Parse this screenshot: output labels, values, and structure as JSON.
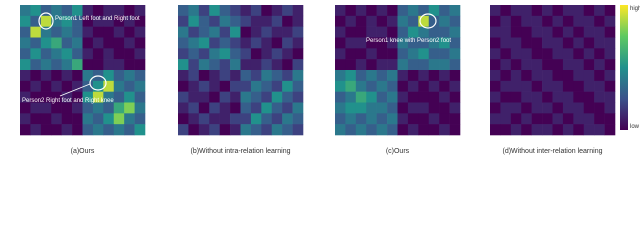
{
  "chart_data": [
    {
      "type": "heatmap",
      "title": "(a)Ours",
      "annotations": [
        "Person1 Left foot and Right foot",
        "Person2 Right foot and Right knee"
      ],
      "values": [
        [
          0.4,
          0.5,
          0.3,
          0.4,
          0.3,
          0.5,
          0.1,
          0.0,
          0.1,
          0.1,
          0.0,
          0.1
        ],
        [
          0.5,
          0.3,
          0.9,
          0.4,
          0.5,
          0.3,
          0.0,
          0.1,
          0.1,
          0.0,
          0.1,
          0.0
        ],
        [
          0.3,
          0.9,
          0.4,
          0.3,
          0.4,
          0.3,
          0.1,
          0.0,
          0.0,
          0.1,
          0.0,
          0.1
        ],
        [
          0.4,
          0.3,
          0.5,
          0.6,
          0.3,
          0.4,
          0.0,
          0.1,
          0.0,
          0.0,
          0.1,
          0.0
        ],
        [
          0.3,
          0.5,
          0.3,
          0.4,
          0.5,
          0.3,
          0.1,
          0.0,
          0.1,
          0.0,
          0.0,
          0.1
        ],
        [
          0.5,
          0.3,
          0.4,
          0.3,
          0.4,
          0.6,
          0.0,
          0.0,
          0.1,
          0.1,
          0.0,
          0.0
        ],
        [
          0.1,
          0.0,
          0.1,
          0.0,
          0.1,
          0.0,
          0.4,
          0.3,
          0.5,
          0.3,
          0.4,
          0.3
        ],
        [
          0.0,
          0.1,
          0.0,
          0.1,
          0.0,
          0.1,
          0.3,
          0.5,
          0.9,
          0.4,
          0.3,
          0.4
        ],
        [
          0.1,
          0.0,
          0.0,
          0.0,
          0.1,
          0.0,
          0.5,
          0.9,
          0.4,
          0.3,
          0.5,
          0.3
        ],
        [
          0.0,
          0.1,
          0.1,
          0.0,
          0.0,
          0.1,
          0.3,
          0.4,
          0.3,
          0.6,
          0.8,
          0.4
        ],
        [
          0.1,
          0.0,
          0.0,
          0.1,
          0.0,
          0.0,
          0.4,
          0.3,
          0.5,
          0.8,
          0.4,
          0.3
        ],
        [
          0.0,
          0.1,
          0.0,
          0.0,
          0.1,
          0.0,
          0.3,
          0.4,
          0.3,
          0.4,
          0.3,
          0.5
        ]
      ]
    },
    {
      "type": "heatmap",
      "title": "(b)Without intra-relation learning",
      "values": [
        [
          0.3,
          0.4,
          0.2,
          0.5,
          0.3,
          0.2,
          0.1,
          0.2,
          0.0,
          0.1,
          0.2,
          0.1
        ],
        [
          0.2,
          0.5,
          0.3,
          0.2,
          0.4,
          0.3,
          0.2,
          0.1,
          0.1,
          0.2,
          0.0,
          0.1
        ],
        [
          0.4,
          0.2,
          0.3,
          0.4,
          0.2,
          0.5,
          0.0,
          0.1,
          0.2,
          0.1,
          0.1,
          0.2
        ],
        [
          0.3,
          0.4,
          0.5,
          0.2,
          0.3,
          0.2,
          0.1,
          0.2,
          0.1,
          0.0,
          0.2,
          0.1
        ],
        [
          0.2,
          0.3,
          0.2,
          0.4,
          0.5,
          0.3,
          0.2,
          0.0,
          0.1,
          0.2,
          0.1,
          0.0
        ],
        [
          0.5,
          0.2,
          0.4,
          0.3,
          0.2,
          0.4,
          0.1,
          0.1,
          0.2,
          0.1,
          0.0,
          0.2
        ],
        [
          0.1,
          0.2,
          0.0,
          0.1,
          0.2,
          0.1,
          0.3,
          0.2,
          0.4,
          0.3,
          0.2,
          0.4
        ],
        [
          0.0,
          0.1,
          0.2,
          0.1,
          0.0,
          0.2,
          0.2,
          0.4,
          0.3,
          0.2,
          0.5,
          0.3
        ],
        [
          0.2,
          0.1,
          0.1,
          0.0,
          0.2,
          0.1,
          0.4,
          0.3,
          0.2,
          0.5,
          0.3,
          0.2
        ],
        [
          0.1,
          0.2,
          0.0,
          0.2,
          0.1,
          0.0,
          0.3,
          0.2,
          0.5,
          0.3,
          0.2,
          0.4
        ],
        [
          0.0,
          0.1,
          0.2,
          0.1,
          0.1,
          0.2,
          0.2,
          0.5,
          0.3,
          0.2,
          0.4,
          0.3
        ],
        [
          0.2,
          0.0,
          0.1,
          0.2,
          0.0,
          0.1,
          0.4,
          0.3,
          0.2,
          0.4,
          0.3,
          0.2
        ]
      ]
    },
    {
      "type": "heatmap",
      "title": "(c)Ours",
      "annotations": [
        "Person1 knee with Person2 foot"
      ],
      "values": [
        [
          0.1,
          0.0,
          0.1,
          0.0,
          0.1,
          0.0,
          0.3,
          0.4,
          0.3,
          0.5,
          0.3,
          0.4
        ],
        [
          0.0,
          0.1,
          0.0,
          0.1,
          0.0,
          0.1,
          0.4,
          0.3,
          0.9,
          0.3,
          0.4,
          0.3
        ],
        [
          0.1,
          0.0,
          0.0,
          0.1,
          0.1,
          0.0,
          0.3,
          0.5,
          0.4,
          0.3,
          0.3,
          0.4
        ],
        [
          0.0,
          0.1,
          0.1,
          0.0,
          0.0,
          0.1,
          0.4,
          0.3,
          0.3,
          0.4,
          0.5,
          0.3
        ],
        [
          0.1,
          0.0,
          0.0,
          0.1,
          0.0,
          0.0,
          0.3,
          0.4,
          0.5,
          0.3,
          0.3,
          0.4
        ],
        [
          0.0,
          0.0,
          0.1,
          0.0,
          0.1,
          0.1,
          0.4,
          0.3,
          0.3,
          0.4,
          0.4,
          0.3
        ],
        [
          0.4,
          0.5,
          0.3,
          0.4,
          0.3,
          0.4,
          0.1,
          0.0,
          0.1,
          0.0,
          0.1,
          0.0
        ],
        [
          0.5,
          0.6,
          0.4,
          0.3,
          0.4,
          0.3,
          0.0,
          0.1,
          0.0,
          0.1,
          0.0,
          0.1
        ],
        [
          0.3,
          0.4,
          0.6,
          0.5,
          0.3,
          0.4,
          0.1,
          0.0,
          0.0,
          0.0,
          0.1,
          0.0
        ],
        [
          0.4,
          0.5,
          0.5,
          0.4,
          0.4,
          0.3,
          0.0,
          0.1,
          0.1,
          0.0,
          0.0,
          0.1
        ],
        [
          0.3,
          0.4,
          0.3,
          0.4,
          0.3,
          0.4,
          0.1,
          0.0,
          0.0,
          0.1,
          0.0,
          0.0
        ],
        [
          0.4,
          0.3,
          0.4,
          0.3,
          0.4,
          0.3,
          0.0,
          0.1,
          0.0,
          0.0,
          0.1,
          0.0
        ]
      ]
    },
    {
      "type": "heatmap",
      "title": "(d)Without inter-relation learning",
      "values": [
        [
          0.1,
          0.0,
          0.1,
          0.1,
          0.0,
          0.1,
          0.0,
          0.1,
          0.1,
          0.0,
          0.1,
          0.0
        ],
        [
          0.0,
          0.1,
          0.0,
          0.1,
          0.1,
          0.0,
          0.1,
          0.0,
          0.1,
          0.1,
          0.0,
          0.1
        ],
        [
          0.1,
          0.1,
          0.0,
          0.0,
          0.1,
          0.1,
          0.0,
          0.1,
          0.0,
          0.1,
          0.1,
          0.0
        ],
        [
          0.0,
          0.1,
          0.1,
          0.0,
          0.0,
          0.1,
          0.1,
          0.0,
          0.1,
          0.0,
          0.1,
          0.1
        ],
        [
          0.1,
          0.0,
          0.1,
          0.1,
          0.0,
          0.0,
          0.1,
          0.1,
          0.0,
          0.1,
          0.0,
          0.1
        ],
        [
          0.0,
          0.1,
          0.0,
          0.1,
          0.1,
          0.0,
          0.0,
          0.1,
          0.1,
          0.0,
          0.1,
          0.0
        ],
        [
          0.1,
          0.0,
          0.1,
          0.0,
          0.1,
          0.1,
          0.0,
          0.0,
          0.1,
          0.1,
          0.0,
          0.1
        ],
        [
          0.0,
          0.1,
          0.1,
          0.1,
          0.0,
          0.1,
          0.1,
          0.0,
          0.0,
          0.1,
          0.1,
          0.0
        ],
        [
          0.1,
          0.0,
          0.0,
          0.1,
          0.1,
          0.0,
          0.1,
          0.1,
          0.0,
          0.0,
          0.1,
          0.1
        ],
        [
          0.0,
          0.1,
          0.1,
          0.0,
          0.1,
          0.1,
          0.0,
          0.1,
          0.1,
          0.0,
          0.0,
          0.1
        ],
        [
          0.1,
          0.1,
          0.0,
          0.1,
          0.0,
          0.0,
          0.1,
          0.0,
          0.1,
          0.1,
          0.0,
          0.0
        ],
        [
          0.0,
          0.0,
          0.1,
          0.0,
          0.1,
          0.1,
          0.0,
          0.1,
          0.0,
          0.1,
          0.1,
          0.0
        ]
      ]
    }
  ],
  "colorbar": {
    "high": "high",
    "low": "low",
    "colormap": "viridis"
  }
}
